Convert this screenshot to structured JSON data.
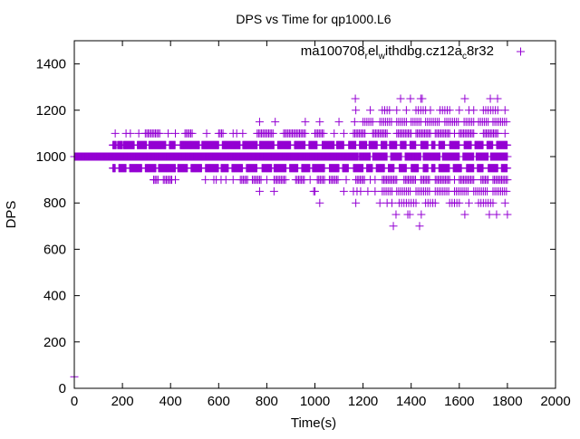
{
  "chart_data": {
    "type": "scatter",
    "title": "DPS vs Time for qp1000.L6",
    "xlabel": "Time(s)",
    "ylabel": "DPS",
    "xlim": [
      0,
      2000
    ],
    "ylim": [
      0,
      1500
    ],
    "xticks": [
      0,
      200,
      400,
      600,
      800,
      1000,
      1200,
      1400,
      1600,
      1800,
      2000
    ],
    "yticks": [
      0,
      200,
      400,
      600,
      800,
      1000,
      1200,
      1400
    ],
    "grid": false,
    "legend_position": "top-right",
    "color": "#9400d3",
    "series": [
      {
        "name": "ma100708_rel_withdbg.cz12a_c8r32",
        "name_segments": [
          {
            "text": "ma100708",
            "sub": false
          },
          {
            "text": "r",
            "sub": true
          },
          {
            "text": "el",
            "sub": false
          },
          {
            "text": "w",
            "sub": true
          },
          {
            "text": "ithdbg.cz12a",
            "sub": false
          },
          {
            "text": "c",
            "sub": true
          },
          {
            "text": "8r32",
            "sub": false
          }
        ],
        "marker": "plus",
        "levels": [
          {
            "y": 50,
            "x": [
              0
            ]
          },
          {
            "y": 1000,
            "step": 1,
            "ranges": [
              [
                0,
                1180
              ],
              [
                1185,
                1230
              ],
              [
                1240,
                1300
              ],
              [
                1315,
                1360
              ],
              [
                1375,
                1440
              ],
              [
                1450,
                1520
              ],
              [
                1530,
                1600
              ],
              [
                1615,
                1660
              ],
              [
                1670,
                1720
              ],
              [
                1730,
                1800
              ]
            ]
          },
          {
            "y": 1050,
            "step": 2,
            "ranges": [
              [
                160,
                175
              ],
              [
                180,
                200
              ],
              [
                205,
                250
              ],
              [
                262,
                300
              ],
              [
                310,
                380
              ],
              [
                395,
                420
              ],
              [
                440,
                520
              ],
              [
                530,
                600
              ],
              [
                615,
                690
              ],
              [
                700,
                760
              ],
              [
                770,
                830
              ],
              [
                845,
                900
              ],
              [
                915,
                960
              ],
              [
                975,
                1010
              ],
              [
                1030,
                1080
              ],
              [
                1090,
                1120
              ],
              [
                1140,
                1170
              ],
              [
                1185,
                1215
              ],
              [
                1225,
                1260
              ],
              [
                1275,
                1300
              ],
              [
                1310,
                1340
              ],
              [
                1355,
                1380
              ],
              [
                1395,
                1420
              ],
              [
                1440,
                1470
              ],
              [
                1485,
                1500
              ],
              [
                1515,
                1540
              ],
              [
                1560,
                1600
              ],
              [
                1620,
                1650
              ],
              [
                1665,
                1700
              ],
              [
                1715,
                1740
              ],
              [
                1755,
                1800
              ]
            ]
          },
          {
            "y": 950,
            "step": 2,
            "ranges": [
              [
                160,
                170
              ],
              [
                185,
                215
              ],
              [
                230,
                280
              ],
              [
                295,
                340
              ],
              [
                350,
                420
              ],
              [
                430,
                470
              ],
              [
                485,
                530
              ],
              [
                545,
                600
              ],
              [
                610,
                640
              ],
              [
                655,
                700
              ],
              [
                715,
                760
              ],
              [
                780,
                820
              ],
              [
                830,
                880
              ],
              [
                895,
                930
              ],
              [
                945,
                980
              ],
              [
                990,
                1040
              ],
              [
                1060,
                1100
              ],
              [
                1115,
                1140
              ],
              [
                1160,
                1200
              ],
              [
                1215,
                1240
              ],
              [
                1255,
                1290
              ],
              [
                1305,
                1330
              ],
              [
                1350,
                1380
              ],
              [
                1400,
                1430
              ],
              [
                1450,
                1470
              ],
              [
                1485,
                1500
              ],
              [
                1515,
                1560
              ],
              [
                1575,
                1610
              ],
              [
                1630,
                1660
              ],
              [
                1675,
                1700
              ],
              [
                1720,
                1760
              ],
              [
                1775,
                1800
              ]
            ]
          },
          {
            "y": 1100,
            "step": 6,
            "ranges": [
              [
                295,
                360
              ],
              [
                460,
                490
              ],
              [
                600,
                620
              ],
              [
                760,
                830
              ],
              [
                870,
                960
              ],
              [
                1000,
                1040
              ],
              [
                1160,
                1210
              ],
              [
                1240,
                1300
              ],
              [
                1340,
                1400
              ],
              [
                1420,
                1480
              ],
              [
                1500,
                1560
              ],
              [
                1600,
                1660
              ],
              [
                1700,
                1760
              ]
            ],
            "x": [
              170,
              215,
              233,
              268,
              390,
              420,
              550,
              660,
              675,
              700,
              1080,
              1120,
              1580,
              1790
            ]
          },
          {
            "y": 900,
            "step": 6,
            "ranges": [
              [
                330,
                350
              ],
              [
                370,
                400
              ],
              [
                690,
                720
              ],
              [
                740,
                780
              ],
              [
                830,
                880
              ],
              [
                920,
                960
              ],
              [
                1010,
                1040
              ],
              [
                1060,
                1100
              ],
              [
                1170,
                1210
              ],
              [
                1280,
                1340
              ],
              [
                1370,
                1420
              ],
              [
                1440,
                1480
              ],
              [
                1500,
                1560
              ],
              [
                1600,
                1660
              ],
              [
                1690,
                1720
              ],
              [
                1740,
                1800
              ]
            ],
            "x": [
              330,
              405,
              420,
              545,
              580,
              590,
              610,
              630,
              660,
              800,
              980,
              1130,
              1230,
              1250,
              1580
            ]
          },
          {
            "y": 1150,
            "step": 8,
            "ranges": [
              [
                1200,
                1240
              ],
              [
                1270,
                1320
              ],
              [
                1340,
                1380
              ],
              [
                1400,
                1440
              ],
              [
                1460,
                1520
              ],
              [
                1540,
                1600
              ],
              [
                1620,
                1660
              ],
              [
                1680,
                1720
              ],
              [
                1740,
                1800
              ]
            ],
            "x": [
              770,
              835,
              960,
              1020,
              1100,
              1165
            ]
          },
          {
            "y": 850,
            "step": 8,
            "ranges": [
              [
                1280,
                1320
              ],
              [
                1340,
                1400
              ],
              [
                1420,
                1480
              ],
              [
                1500,
                1560
              ],
              [
                1580,
                1640
              ],
              [
                1660,
                1720
              ],
              [
                1740,
                1800
              ]
            ],
            "x": [
              770,
              830,
              995,
              1000,
              1120,
              1160,
              1175,
              1190,
              1220,
              1250
            ]
          },
          {
            "y": 1200,
            "step": 10,
            "ranges": [
              [
                1280,
                1310
              ],
              [
                1420,
                1460
              ],
              [
                1520,
                1560
              ],
              [
                1700,
                1760
              ]
            ],
            "x": [
              1170,
              1230,
              1340,
              1380,
              1480,
              1600,
              1640,
              1660,
              1790
            ]
          },
          {
            "y": 800,
            "step": 10,
            "ranges": [
              [
                1350,
                1420
              ],
              [
                1460,
                1500
              ],
              [
                1560,
                1600
              ],
              [
                1680,
                1740
              ]
            ],
            "x": [
              1020,
              1170,
              1270,
              1300,
              1320,
              1640,
              1790
            ]
          },
          {
            "y": 1250,
            "x": [
              1168,
              1356,
              1397,
              1440,
              1446,
              1623,
              1729,
              1759
            ]
          },
          {
            "y": 750,
            "x": [
              1337,
              1386,
              1394,
              1442,
              1623,
              1725,
              1755,
              1800
            ]
          },
          {
            "y": 700,
            "x": [
              1326,
              1435
            ]
          }
        ]
      }
    ]
  }
}
